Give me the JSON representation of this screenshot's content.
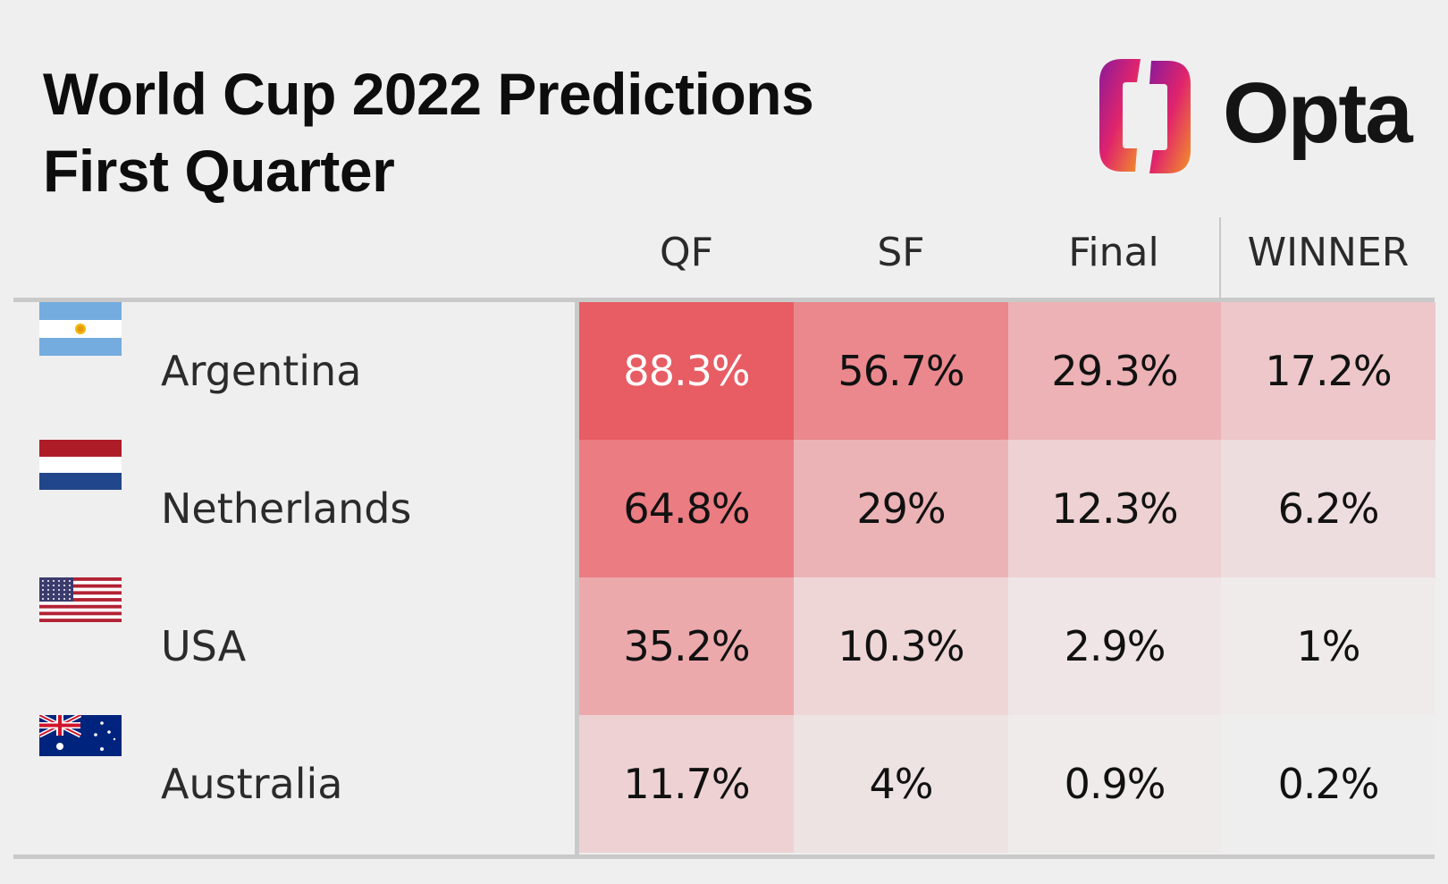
{
  "header": {
    "title_line1": "World Cup 2022 Predictions",
    "title_line2": "First Quarter",
    "brand": "Opta"
  },
  "colors": {
    "background": "#efefef",
    "heat_max": "#e85c63",
    "heat_min": "#efefef",
    "logo_gradient": [
      "#8a1a9a",
      "#e0246c",
      "#f29426"
    ]
  },
  "chart_data": {
    "type": "table",
    "columns": [
      "QF",
      "SF",
      "Final",
      "WINNER"
    ],
    "rows": [
      {
        "team": "Argentina",
        "flag": "argentina-flag",
        "values": [
          "88.3%",
          "56.7%",
          "29.3%",
          "17.2%"
        ]
      },
      {
        "team": "Netherlands",
        "flag": "netherlands-flag",
        "values": [
          "64.8%",
          "29%",
          "12.3%",
          "6.2%"
        ]
      },
      {
        "team": "USA",
        "flag": "usa-flag",
        "values": [
          "35.2%",
          "10.3%",
          "2.9%",
          "1%"
        ]
      },
      {
        "team": "Australia",
        "flag": "australia-flag",
        "values": [
          "11.7%",
          "4%",
          "0.9%",
          "0.2%"
        ]
      }
    ]
  }
}
